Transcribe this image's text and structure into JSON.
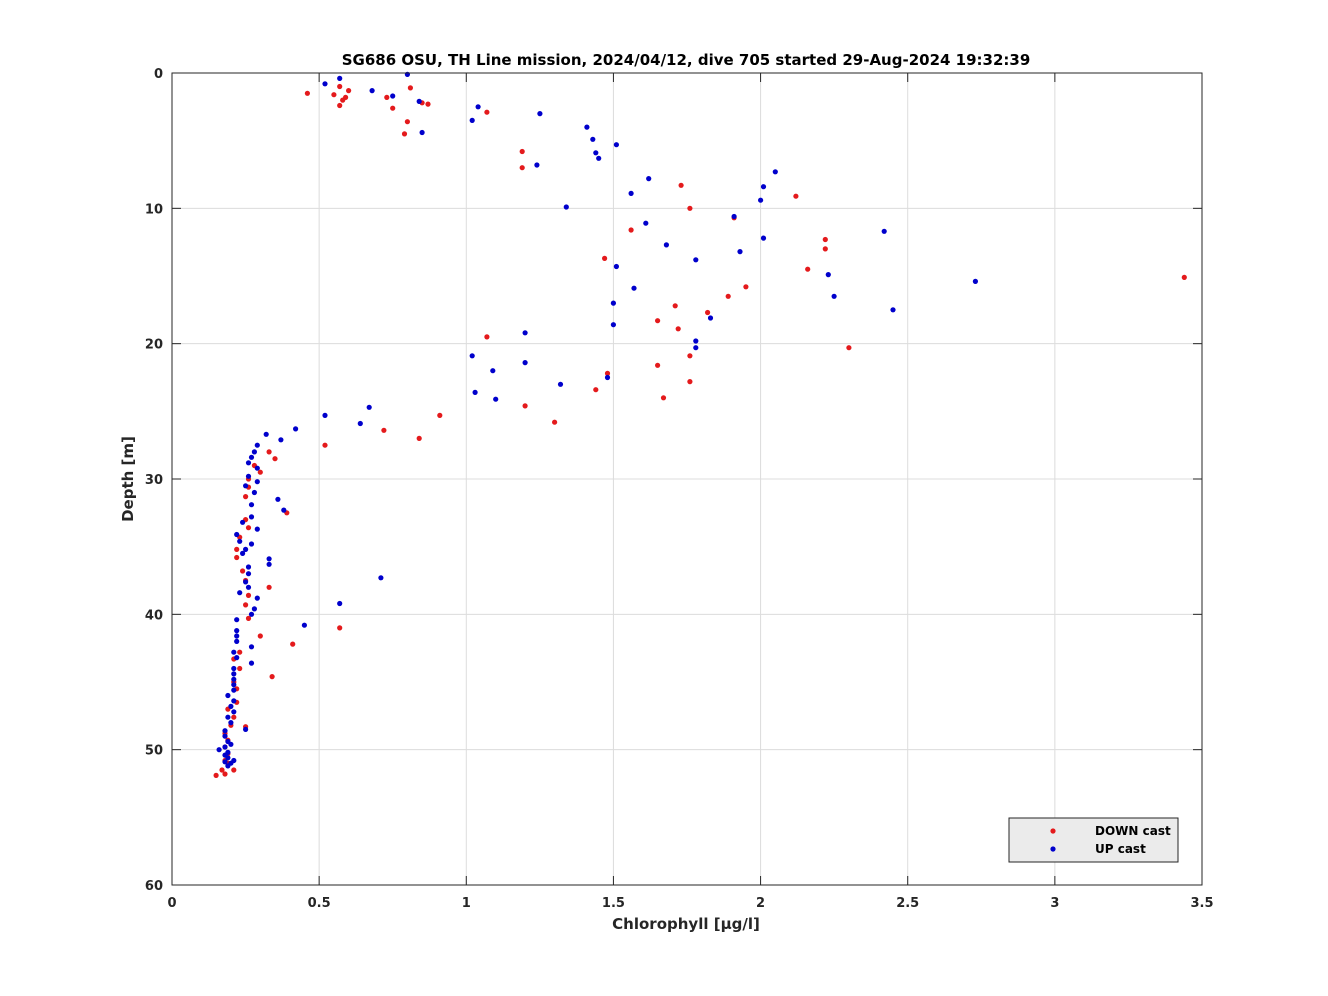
{
  "chart_data": {
    "type": "scatter",
    "title": "SG686 OSU, TH Line mission, 2024/04/12, dive 705 started 29-Aug-2024 19:32:39",
    "xlabel": "Chlorophyll [μg/l]",
    "ylabel": "Depth [m]",
    "xlim": [
      0,
      3.5
    ],
    "ylim": [
      0,
      60
    ],
    "y_reversed": true,
    "grid": true,
    "legend_position": "bottom-right",
    "x_ticks": [
      "0",
      "0.5",
      "1",
      "1.5",
      "2",
      "2.5",
      "3",
      "3.5"
    ],
    "y_ticks": [
      "0",
      "10",
      "20",
      "30",
      "40",
      "50",
      "60"
    ],
    "series": [
      {
        "name": "DOWN cast",
        "color": "#e41a1c",
        "points": [
          [
            0.46,
            1.5
          ],
          [
            0.55,
            1.6
          ],
          [
            0.57,
            1.0
          ],
          [
            0.6,
            1.3
          ],
          [
            0.58,
            2.0
          ],
          [
            0.59,
            1.8
          ],
          [
            0.57,
            2.4
          ],
          [
            0.81,
            1.1
          ],
          [
            0.73,
            1.8
          ],
          [
            0.75,
            2.6
          ],
          [
            0.85,
            2.2
          ],
          [
            0.87,
            2.3
          ],
          [
            1.07,
            2.9
          ],
          [
            0.8,
            3.6
          ],
          [
            0.79,
            4.5
          ],
          [
            1.19,
            5.8
          ],
          [
            1.19,
            7.0
          ],
          [
            1.73,
            8.3
          ],
          [
            2.12,
            9.1
          ],
          [
            1.76,
            10.0
          ],
          [
            1.91,
            10.7
          ],
          [
            1.56,
            11.6
          ],
          [
            2.22,
            12.3
          ],
          [
            2.22,
            13.0
          ],
          [
            1.47,
            13.7
          ],
          [
            2.16,
            14.5
          ],
          [
            3.44,
            15.1
          ],
          [
            1.95,
            15.8
          ],
          [
            1.89,
            16.5
          ],
          [
            1.71,
            17.2
          ],
          [
            1.82,
            17.7
          ],
          [
            1.65,
            18.3
          ],
          [
            1.72,
            18.9
          ],
          [
            1.07,
            19.5
          ],
          [
            2.3,
            20.3
          ],
          [
            1.76,
            20.9
          ],
          [
            1.65,
            21.6
          ],
          [
            1.48,
            22.2
          ],
          [
            1.76,
            22.8
          ],
          [
            1.44,
            23.4
          ],
          [
            1.67,
            24.0
          ],
          [
            1.2,
            24.6
          ],
          [
            0.91,
            25.3
          ],
          [
            1.3,
            25.8
          ],
          [
            0.72,
            26.4
          ],
          [
            0.84,
            27.0
          ],
          [
            0.52,
            27.5
          ],
          [
            0.33,
            28.0
          ],
          [
            0.35,
            28.5
          ],
          [
            0.28,
            29.0
          ],
          [
            0.3,
            29.5
          ],
          [
            0.26,
            30.0
          ],
          [
            0.26,
            30.6
          ],
          [
            0.25,
            31.3
          ],
          [
            0.39,
            32.5
          ],
          [
            0.25,
            33.0
          ],
          [
            0.26,
            33.6
          ],
          [
            0.23,
            34.3
          ],
          [
            0.22,
            35.2
          ],
          [
            0.22,
            35.8
          ],
          [
            0.24,
            36.8
          ],
          [
            0.25,
            37.5
          ],
          [
            0.33,
            38.0
          ],
          [
            0.26,
            38.6
          ],
          [
            0.25,
            39.3
          ],
          [
            0.26,
            40.3
          ],
          [
            0.3,
            41.6
          ],
          [
            0.41,
            42.2
          ],
          [
            0.23,
            42.8
          ],
          [
            0.21,
            43.3
          ],
          [
            0.23,
            44.0
          ],
          [
            0.34,
            44.6
          ],
          [
            0.21,
            45.0
          ],
          [
            0.22,
            45.5
          ],
          [
            0.19,
            47.0
          ],
          [
            0.22,
            46.5
          ],
          [
            0.21,
            47.6
          ],
          [
            0.25,
            48.3
          ],
          [
            0.2,
            48.2
          ],
          [
            0.18,
            48.8
          ],
          [
            0.19,
            49.3
          ],
          [
            0.18,
            49.8
          ],
          [
            0.19,
            50.3
          ],
          [
            0.18,
            50.8
          ],
          [
            0.19,
            51.0
          ],
          [
            0.21,
            51.5
          ],
          [
            0.17,
            51.5
          ],
          [
            0.18,
            51.8
          ],
          [
            0.15,
            51.9
          ],
          [
            0.57,
            41.0
          ]
        ]
      },
      {
        "name": "UP cast",
        "color": "#0000cc",
        "points": [
          [
            0.8,
            0.1
          ],
          [
            0.57,
            0.4
          ],
          [
            0.52,
            0.8
          ],
          [
            0.68,
            1.3
          ],
          [
            0.75,
            1.7
          ],
          [
            0.84,
            2.1
          ],
          [
            1.04,
            2.5
          ],
          [
            1.25,
            3.0
          ],
          [
            1.02,
            3.5
          ],
          [
            1.41,
            4.0
          ],
          [
            0.85,
            4.4
          ],
          [
            1.43,
            4.9
          ],
          [
            1.51,
            5.3
          ],
          [
            1.44,
            5.9
          ],
          [
            1.45,
            6.3
          ],
          [
            1.24,
            6.8
          ],
          [
            2.05,
            7.3
          ],
          [
            1.62,
            7.8
          ],
          [
            2.01,
            8.4
          ],
          [
            1.56,
            8.9
          ],
          [
            2.0,
            9.4
          ],
          [
            1.34,
            9.9
          ],
          [
            1.91,
            10.6
          ],
          [
            1.61,
            11.1
          ],
          [
            2.42,
            11.7
          ],
          [
            2.01,
            12.2
          ],
          [
            1.68,
            12.7
          ],
          [
            1.93,
            13.2
          ],
          [
            1.78,
            13.8
          ],
          [
            1.51,
            14.3
          ],
          [
            2.23,
            14.9
          ],
          [
            2.73,
            15.4
          ],
          [
            1.57,
            15.9
          ],
          [
            2.25,
            16.5
          ],
          [
            1.5,
            17.0
          ],
          [
            2.45,
            17.5
          ],
          [
            1.83,
            18.1
          ],
          [
            1.5,
            18.6
          ],
          [
            1.2,
            19.2
          ],
          [
            1.78,
            19.8
          ],
          [
            1.78,
            20.3
          ],
          [
            1.02,
            20.9
          ],
          [
            1.2,
            21.4
          ],
          [
            1.09,
            22.0
          ],
          [
            1.48,
            22.5
          ],
          [
            1.32,
            23.0
          ],
          [
            1.03,
            23.6
          ],
          [
            1.1,
            24.1
          ],
          [
            0.67,
            24.7
          ],
          [
            0.52,
            25.3
          ],
          [
            0.64,
            25.9
          ],
          [
            0.42,
            26.3
          ],
          [
            0.32,
            26.7
          ],
          [
            0.37,
            27.1
          ],
          [
            0.29,
            27.5
          ],
          [
            0.28,
            28.0
          ],
          [
            0.27,
            28.4
          ],
          [
            0.26,
            28.8
          ],
          [
            0.29,
            29.2
          ],
          [
            0.26,
            29.8
          ],
          [
            0.29,
            30.2
          ],
          [
            0.25,
            30.5
          ],
          [
            0.28,
            31.0
          ],
          [
            0.36,
            31.5
          ],
          [
            0.27,
            31.9
          ],
          [
            0.38,
            32.3
          ],
          [
            0.27,
            32.8
          ],
          [
            0.24,
            33.2
          ],
          [
            0.29,
            33.7
          ],
          [
            0.22,
            34.1
          ],
          [
            0.23,
            34.6
          ],
          [
            0.27,
            34.8
          ],
          [
            0.25,
            35.2
          ],
          [
            0.24,
            35.5
          ],
          [
            0.33,
            35.9
          ],
          [
            0.33,
            36.3
          ],
          [
            0.26,
            36.5
          ],
          [
            0.26,
            37.0
          ],
          [
            0.71,
            37.3
          ],
          [
            0.25,
            37.6
          ],
          [
            0.26,
            38.0
          ],
          [
            0.23,
            38.4
          ],
          [
            0.29,
            38.8
          ],
          [
            0.57,
            39.2
          ],
          [
            0.28,
            39.6
          ],
          [
            0.27,
            40.0
          ],
          [
            0.22,
            40.4
          ],
          [
            0.45,
            40.8
          ],
          [
            0.22,
            41.2
          ],
          [
            0.22,
            41.6
          ],
          [
            0.22,
            42.0
          ],
          [
            0.27,
            42.4
          ],
          [
            0.21,
            42.8
          ],
          [
            0.22,
            43.2
          ],
          [
            0.27,
            43.6
          ],
          [
            0.21,
            44.0
          ],
          [
            0.21,
            44.4
          ],
          [
            0.21,
            44.8
          ],
          [
            0.21,
            45.2
          ],
          [
            0.21,
            45.6
          ],
          [
            0.19,
            46.0
          ],
          [
            0.21,
            46.4
          ],
          [
            0.2,
            46.8
          ],
          [
            0.21,
            47.2
          ],
          [
            0.19,
            47.6
          ],
          [
            0.2,
            48.0
          ],
          [
            0.25,
            48.5
          ],
          [
            0.18,
            48.6
          ],
          [
            0.18,
            49.0
          ],
          [
            0.19,
            49.4
          ],
          [
            0.2,
            49.6
          ],
          [
            0.18,
            49.8
          ],
          [
            0.16,
            50.0
          ],
          [
            0.19,
            50.2
          ],
          [
            0.18,
            50.4
          ],
          [
            0.19,
            50.6
          ],
          [
            0.21,
            50.8
          ],
          [
            0.18,
            50.9
          ],
          [
            0.2,
            51.0
          ],
          [
            0.19,
            51.2
          ]
        ]
      }
    ]
  }
}
